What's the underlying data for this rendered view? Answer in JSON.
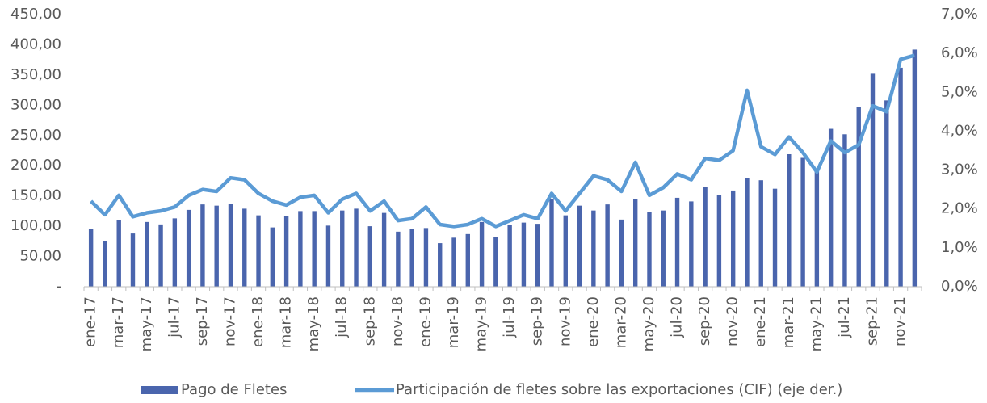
{
  "chart_data": {
    "type": "bar+line",
    "categories": [
      "ene-17",
      null,
      "mar-17",
      null,
      "may-17",
      null,
      "jul-17",
      null,
      "sep-17",
      null,
      "nov-17",
      null,
      "ene-18",
      null,
      "mar-18",
      null,
      "may-18",
      null,
      "jul-18",
      null,
      "sep-18",
      null,
      "nov-18",
      null,
      "ene-19",
      null,
      "mar-19",
      null,
      "may-19",
      null,
      "jul-19",
      null,
      "sep-19",
      null,
      "nov-19",
      null,
      "ene-20",
      null,
      "mar-20",
      null,
      "may-20",
      null,
      "jul-20",
      null,
      "sep-20",
      null,
      "nov-20",
      null,
      "ene-21",
      null,
      "mar-21",
      null,
      "may-21",
      null,
      "jul-21",
      null,
      "sep-21",
      null,
      "nov-21",
      null
    ],
    "series": [
      {
        "name": "Pago de Fletes",
        "color": "#4a65ad",
        "type": "bar",
        "values": [
          95,
          75,
          110,
          88,
          107,
          103,
          113,
          127,
          136,
          134,
          137,
          129,
          118,
          98,
          117,
          125,
          125,
          101,
          126,
          129,
          100,
          122,
          91,
          95,
          97,
          72,
          81,
          87,
          107,
          82,
          102,
          106,
          104,
          145,
          118,
          134,
          126,
          136,
          111,
          145,
          123,
          126,
          147,
          141,
          165,
          152,
          159,
          179,
          176,
          162,
          219,
          213,
          195,
          261,
          252,
          297,
          352,
          308,
          362,
          392
        ]
      },
      {
        "name": "Participación de fletes sobre las exportaciones (CIF) (eje der.)",
        "color": "#5b9bd5",
        "type": "line",
        "axis": "y2",
        "values": [
          2.2,
          1.85,
          2.35,
          1.8,
          1.9,
          1.95,
          2.05,
          2.35,
          2.5,
          2.45,
          2.8,
          2.75,
          2.4,
          2.2,
          2.1,
          2.3,
          2.35,
          1.9,
          2.25,
          2.4,
          1.95,
          2.2,
          1.7,
          1.75,
          2.05,
          1.6,
          1.55,
          1.6,
          1.75,
          1.55,
          1.7,
          1.85,
          1.75,
          2.4,
          1.95,
          2.4,
          2.85,
          2.75,
          2.45,
          3.2,
          2.35,
          2.55,
          2.9,
          2.75,
          3.3,
          3.25,
          3.5,
          5.05,
          3.6,
          3.4,
          3.85,
          3.45,
          2.95,
          3.75,
          3.45,
          3.65,
          4.65,
          4.5,
          5.85,
          5.95
        ]
      }
    ],
    "ylim": [
      0,
      450
    ],
    "yticks": [
      {
        "value": 0,
        "label": "-"
      },
      {
        "value": 50,
        "label": "50,00"
      },
      {
        "value": 100,
        "label": "100,00"
      },
      {
        "value": 150,
        "label": "150,00"
      },
      {
        "value": 200,
        "label": "200,00"
      },
      {
        "value": 250,
        "label": "250,00"
      },
      {
        "value": 300,
        "label": "300,00"
      },
      {
        "value": 350,
        "label": "350,00"
      },
      {
        "value": 400,
        "label": "400,00"
      },
      {
        "value": 450,
        "label": "450,00"
      }
    ],
    "y2lim": [
      0,
      7
    ],
    "y2ticks": [
      {
        "value": 0,
        "label": "0,0%"
      },
      {
        "value": 1,
        "label": "1,0%"
      },
      {
        "value": 2,
        "label": "2,0%"
      },
      {
        "value": 3,
        "label": "3,0%"
      },
      {
        "value": 4,
        "label": "4,0%"
      },
      {
        "value": 5,
        "label": "5,0%"
      },
      {
        "value": 6,
        "label": "6,0%"
      },
      {
        "value": 7,
        "label": "7,0%"
      }
    ],
    "legend": "bottom"
  }
}
